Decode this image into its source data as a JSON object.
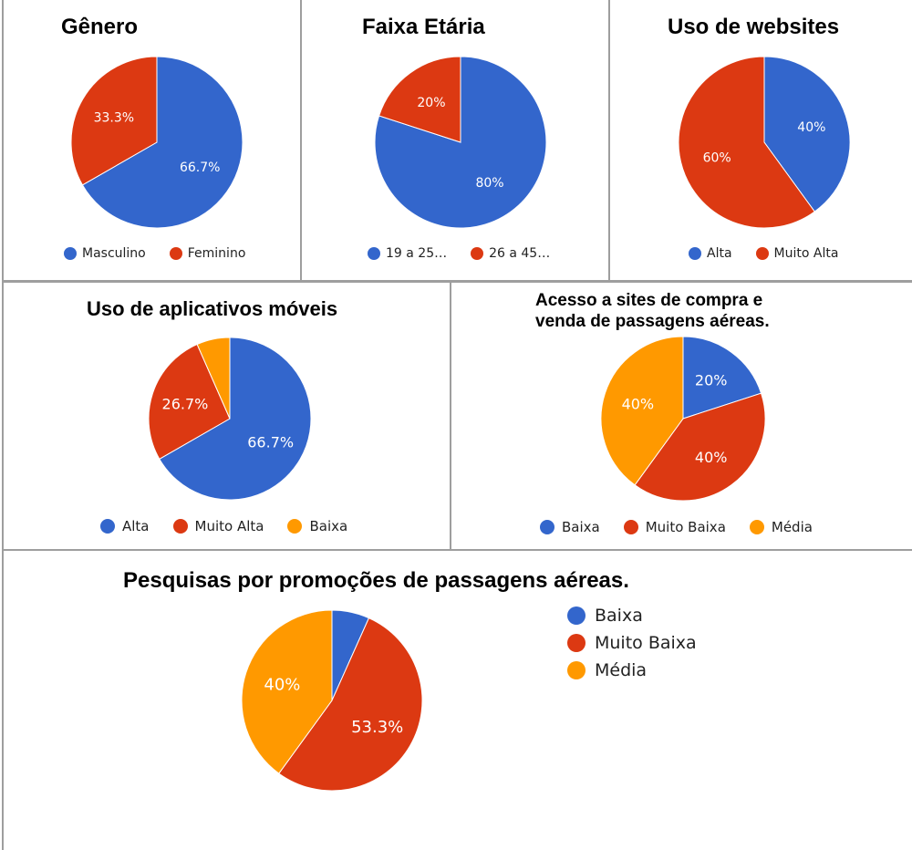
{
  "colors": {
    "blue": "#3366cc",
    "red": "#dc3912",
    "orange": "#ff9900"
  },
  "chart_data": [
    {
      "type": "pie",
      "title": "Gênero",
      "categories": [
        "Masculino",
        "Feminino"
      ],
      "values": [
        66.7,
        33.3
      ],
      "labels": [
        "66.7%",
        "33.3%"
      ],
      "colors": [
        "#3366cc",
        "#dc3912"
      ],
      "legend_entries": [
        "Masculino",
        "Feminino"
      ],
      "legend": "bottom"
    },
    {
      "type": "pie",
      "title": "Faixa Etária",
      "categories": [
        "19 a 25…",
        "26 a 45…"
      ],
      "values": [
        80,
        20
      ],
      "labels": [
        "80%",
        "20%"
      ],
      "colors": [
        "#3366cc",
        "#dc3912"
      ],
      "legend_entries": [
        "19 a 25…",
        "26 a 45…"
      ],
      "legend": "bottom"
    },
    {
      "type": "pie",
      "title": "Uso de websites",
      "categories": [
        "Alta",
        "Muito Alta"
      ],
      "values": [
        40,
        60
      ],
      "labels": [
        "40%",
        "60%"
      ],
      "colors": [
        "#3366cc",
        "#dc3912"
      ],
      "legend_entries": [
        "Alta",
        "Muito Alta"
      ],
      "legend": "bottom"
    },
    {
      "type": "pie",
      "title": "Uso de aplicativos móveis",
      "categories": [
        "Alta",
        "Muito Alta",
        "Baixa"
      ],
      "values": [
        66.7,
        26.7,
        6.6
      ],
      "labels": [
        "66.7%",
        "26.7%",
        ""
      ],
      "colors": [
        "#3366cc",
        "#dc3912",
        "#ff9900"
      ],
      "legend_entries": [
        "Alta",
        "Muito Alta",
        "Baixa"
      ],
      "legend": "bottom"
    },
    {
      "type": "pie",
      "title": "Acesso a sites de compra e venda de passagens aéreas.",
      "title_lines": [
        "Acesso a sites de compra e",
        "venda de passagens aéreas."
      ],
      "categories": [
        "Baixa",
        "Muito Baixa",
        "Média"
      ],
      "values": [
        20,
        40,
        40
      ],
      "labels": [
        "20%",
        "40%",
        "40%"
      ],
      "colors": [
        "#3366cc",
        "#dc3912",
        "#ff9900"
      ],
      "legend_entries": [
        "Baixa",
        "Muito Baixa",
        "Média"
      ],
      "legend": "bottom"
    },
    {
      "type": "pie",
      "title": "Pesquisas por promoções de passagens aéreas.",
      "categories": [
        "Baixa",
        "Muito Baixa",
        "Média"
      ],
      "values": [
        6.7,
        53.3,
        40
      ],
      "labels": [
        "",
        "53.3%",
        "40%"
      ],
      "colors": [
        "#3366cc",
        "#dc3912",
        "#ff9900"
      ],
      "legend_entries": [
        "Baixa",
        "Muito Baixa",
        "Média"
      ],
      "legend": "right"
    }
  ]
}
